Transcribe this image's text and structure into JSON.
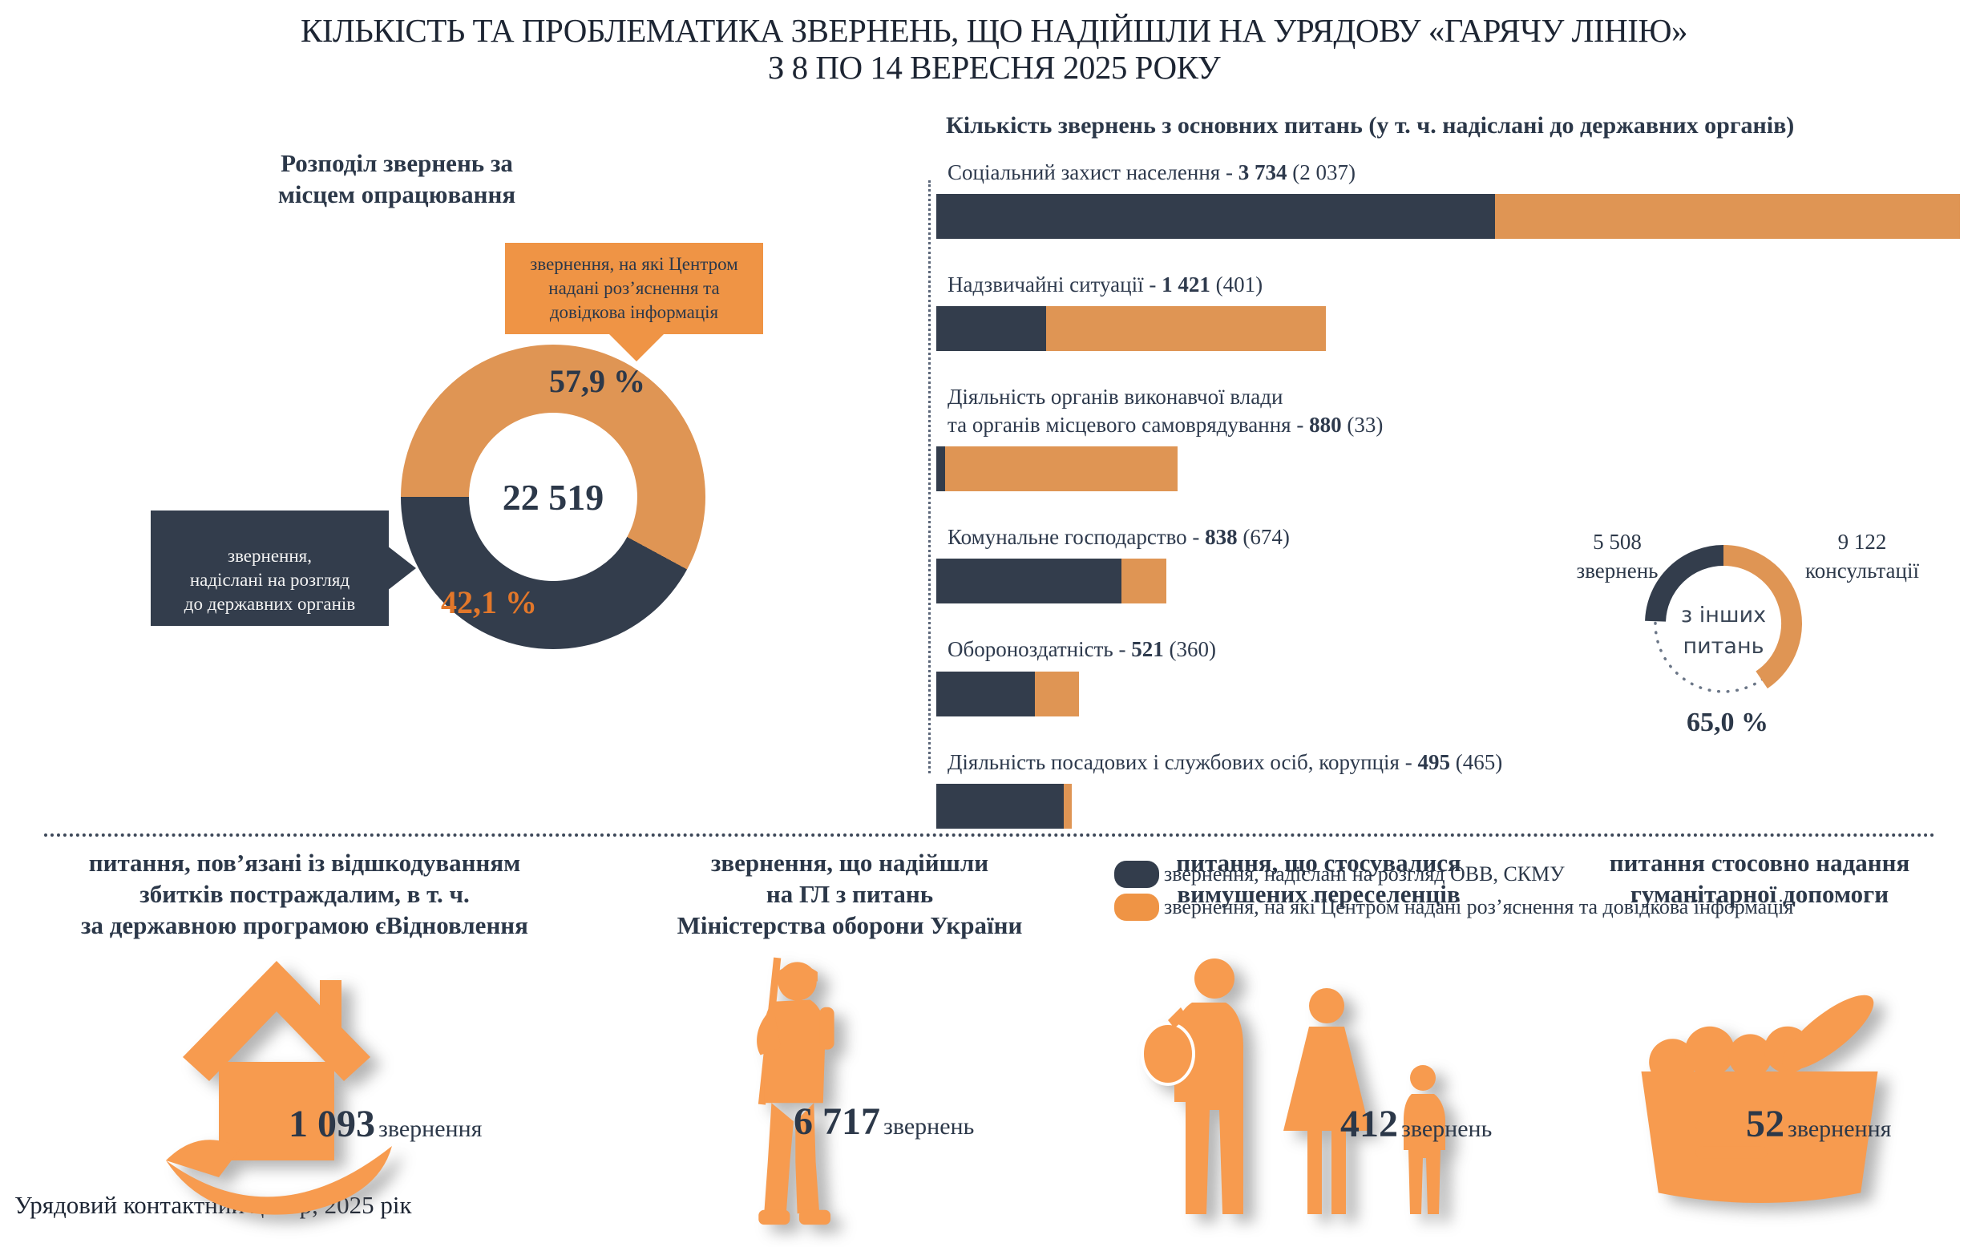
{
  "page": {
    "title_line1": "КІЛЬКІСТЬ ТА ПРОБЛЕМАТИКА ЗВЕРНЕНЬ, ЩО НАДІЙШЛИ НА УРЯДОВУ «ГАРЯЧУ ЛІНІЮ»",
    "title_line2": "З 8 ПО 14 ВЕРЕСНЯ 2025 РОКУ",
    "footer": "Урядовий контактний центр, 2025 рік"
  },
  "colors": {
    "dark": "#333D4C",
    "orange": "#DF9554",
    "orange_bright": "#EF9445",
    "icon_orange": "#F79B4F",
    "orange_text": "#E2772A",
    "text": "#2C3849"
  },
  "chart_data": [
    {
      "type": "donut",
      "title": "Розподіл звернень за місцем опрацювання",
      "total": 22519,
      "total_label": "22 519",
      "slices": [
        {
          "label": "звернення, на які Центром надані роз’яснення та довідкова інформація",
          "pct": 57.9,
          "pct_label": "57,9 %",
          "color": "#DF9554"
        },
        {
          "label": "звернення,\nнадіслані на розгляд\nдо державних органів",
          "pct": 42.1,
          "pct_label": "42,1 %",
          "color": "#333D4C"
        }
      ]
    },
    {
      "type": "bar",
      "title": "Кількість звернень з основних питань (у т. ч. надіслані до державних органів)",
      "max": 3734,
      "bars": [
        {
          "label": "Соціальний захист населення",
          "total": 3734,
          "sent": 2037,
          "total_label": "3 734",
          "sent_label": "2 037"
        },
        {
          "label": "Надзвичайні ситуації",
          "total": 1421,
          "sent": 401,
          "total_label": "1 421",
          "sent_label": "401"
        },
        {
          "label": "Діяльність органів виконавчої влади\nта органів місцевого самоврядування",
          "total": 880,
          "sent": 33,
          "total_label": "880",
          "sent_label": "33"
        },
        {
          "label": "Комунальне господарство",
          "total": 838,
          "sent": 674,
          "total_label": "838",
          "sent_label": "674"
        },
        {
          "label": "Обороноздатність",
          "total": 521,
          "sent": 360,
          "total_label": "521",
          "sent_label": "360"
        },
        {
          "label": "Діяльність посадових і службових осіб, корупція",
          "total": 495,
          "sent": 465,
          "total_label": "495",
          "sent_label": "465"
        }
      ],
      "legend": [
        {
          "label": "звернення, надіслані на розгляд ОВВ, СКМУ",
          "color": "#333D4C"
        },
        {
          "label": "звернення, на які Центром надані роз’яснення та довідкова інформація",
          "color": "#EF9445"
        }
      ]
    },
    {
      "type": "donut",
      "center_label": "з інших\nпитань",
      "share_pct": 65.0,
      "share_label": "65,0 %",
      "segments": [
        {
          "value": 5508,
          "value_label": "5 508",
          "unit": "звернень",
          "color": "#333D4C"
        },
        {
          "value": 9122,
          "value_label": "9 122",
          "unit": "консультації",
          "color": "#DF9554"
        }
      ]
    },
    {
      "type": "stat_cards",
      "cards": [
        {
          "label": "питання, пов’язані із відшкодуванням\nзбитків постраждалим, в т. ч.\nза державною програмою єВідновлення",
          "value": "1 093",
          "unit": "звернення",
          "icon": "house-in-hand-icon"
        },
        {
          "label": "звернення, що надійшли\nна ГЛ з питань\nМіністерства оборони України",
          "value": "6 717",
          "unit": "звернень",
          "icon": "soldier-icon"
        },
        {
          "label": "питання, що стосувалися\nвимушених переселенців",
          "value": "412",
          "unit": "звернень",
          "icon": "family-icon"
        },
        {
          "label": "питання стосовно надання\nгуманітарної допомоги",
          "value": "52",
          "unit": "звернення",
          "icon": "food-basket-icon"
        }
      ]
    }
  ]
}
